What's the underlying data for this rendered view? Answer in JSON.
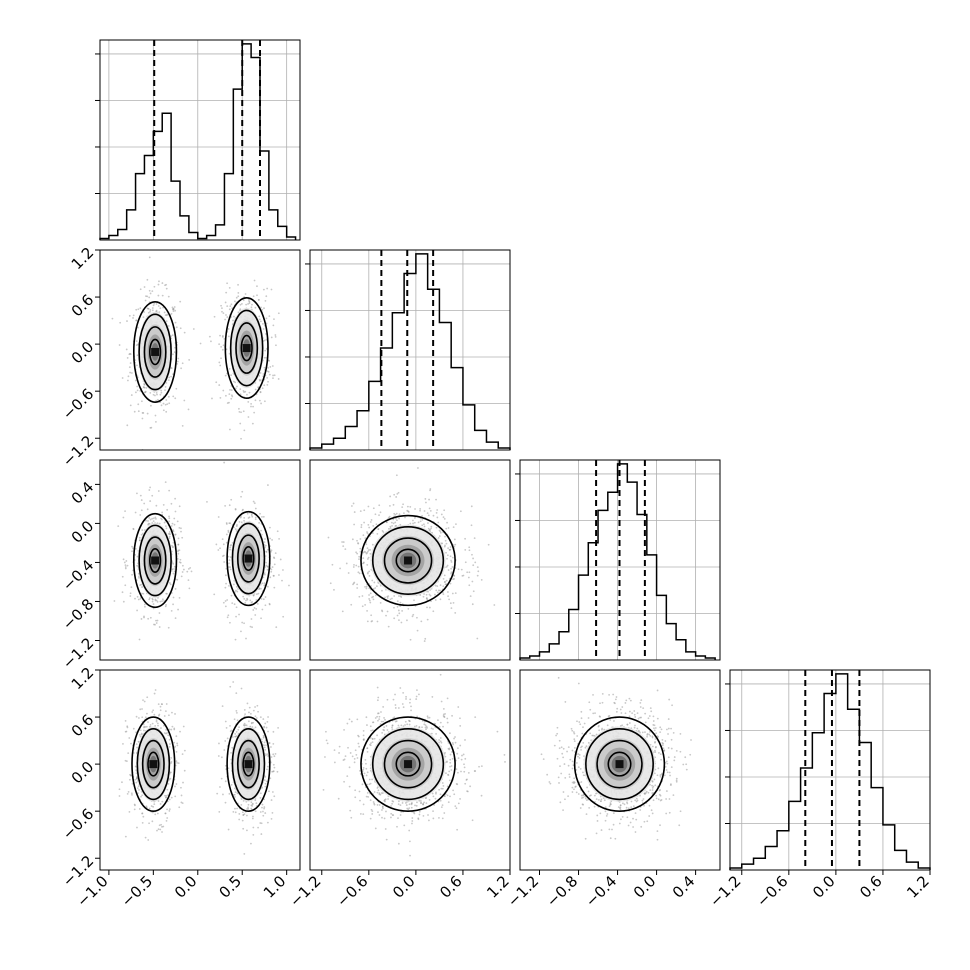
{
  "chart_data": {
    "type": "corner",
    "title": "",
    "parameters": [
      {
        "range": [
          -1.1,
          1.15
        ],
        "ticks": [
          -1.0,
          -0.5,
          0.0,
          0.5,
          1.0
        ],
        "tick_labels": [
          "−1.0",
          "−0.5",
          "0.0",
          "0.5",
          "1.0"
        ],
        "hist_x": [
          -1.1,
          -1.0,
          -0.9,
          -0.8,
          -0.7,
          -0.6,
          -0.5,
          -0.4,
          -0.3,
          -0.2,
          -0.1,
          0.0,
          0.1,
          0.2,
          0.3,
          0.4,
          0.5,
          0.6,
          0.7,
          0.8,
          0.9,
          1.0,
          1.1
        ],
        "hist_counts": [
          0.01,
          0.03,
          0.07,
          0.2,
          0.44,
          0.56,
          0.72,
          0.84,
          0.39,
          0.16,
          0.05,
          0.01,
          0.03,
          0.1,
          0.44,
          1.0,
          1.3,
          1.21,
          0.59,
          0.2,
          0.09,
          0.02
        ],
        "quantiles": [
          -0.49,
          0.5,
          0.7
        ]
      },
      {
        "range": [
          -1.35,
          1.2
        ],
        "ticks": [
          -1.2,
          -0.6,
          0.0,
          0.6,
          1.2
        ],
        "tick_labels": [
          "−1.2",
          "−0.6",
          "0.0",
          "0.6",
          "1.2"
        ],
        "hist_x": [
          -1.35,
          -1.2,
          -1.05,
          -0.9,
          -0.75,
          -0.6,
          -0.45,
          -0.3,
          -0.15,
          0.0,
          0.15,
          0.3,
          0.45,
          0.6,
          0.75,
          0.9,
          1.05,
          1.2
        ],
        "hist_counts": [
          0.01,
          0.03,
          0.06,
          0.12,
          0.2,
          0.35,
          0.52,
          0.7,
          0.9,
          1.0,
          0.82,
          0.65,
          0.42,
          0.23,
          0.1,
          0.04,
          0.01
        ],
        "quantiles": [
          -0.44,
          -0.11,
          0.22
        ]
      },
      {
        "range": [
          -1.4,
          0.65
        ],
        "ticks": [
          -1.2,
          -0.8,
          -0.4,
          0.0,
          0.4
        ],
        "tick_labels": [
          "−1.2",
          "−0.8",
          "−0.4",
          "0.0",
          "0.4"
        ],
        "hist_x": [
          -1.4,
          -1.3,
          -1.2,
          -1.1,
          -1.0,
          -0.9,
          -0.8,
          -0.7,
          -0.6,
          -0.5,
          -0.4,
          -0.3,
          -0.2,
          -0.1,
          0.0,
          0.1,
          0.2,
          0.3,
          0.4,
          0.5,
          0.6
        ],
        "hist_counts": [
          0.01,
          0.02,
          0.04,
          0.08,
          0.14,
          0.25,
          0.42,
          0.58,
          0.74,
          0.83,
          0.97,
          0.88,
          0.72,
          0.52,
          0.32,
          0.18,
          0.1,
          0.04,
          0.02,
          0.01
        ],
        "quantiles": [
          -0.62,
          -0.38,
          -0.12
        ]
      },
      {
        "range": [
          -1.35,
          1.2
        ],
        "ticks": [
          -1.2,
          -0.6,
          0.0,
          0.6,
          1.2
        ],
        "tick_labels": [
          "−1.2",
          "−0.6",
          "0.0",
          "0.6",
          "1.2"
        ],
        "hist_x": [
          -1.35,
          -1.2,
          -1.05,
          -0.9,
          -0.75,
          -0.6,
          -0.45,
          -0.3,
          -0.15,
          0.0,
          0.15,
          0.3,
          0.45,
          0.6,
          0.75,
          0.9,
          1.05,
          1.2
        ],
        "hist_counts": [
          0.01,
          0.03,
          0.06,
          0.12,
          0.2,
          0.35,
          0.52,
          0.7,
          0.9,
          1.0,
          0.82,
          0.65,
          0.42,
          0.23,
          0.1,
          0.04,
          0.01
        ],
        "quantiles": [
          -0.39,
          -0.05,
          0.3
        ]
      }
    ],
    "scatter_panels": [
      {
        "x_param": 0,
        "y_param": 1,
        "modes": [
          {
            "x": -0.48,
            "y": -0.1,
            "sx": 0.12,
            "sy": 0.32
          },
          {
            "x": 0.55,
            "y": -0.05,
            "sx": 0.12,
            "sy": 0.32
          }
        ]
      },
      {
        "x_param": 0,
        "y_param": 2,
        "modes": [
          {
            "x": -0.48,
            "y": -0.38,
            "sx": 0.12,
            "sy": 0.24
          },
          {
            "x": 0.57,
            "y": -0.36,
            "sx": 0.12,
            "sy": 0.24
          }
        ]
      },
      {
        "x_param": 1,
        "y_param": 2,
        "modes": [
          {
            "x": -0.1,
            "y": -0.38,
            "sx": 0.3,
            "sy": 0.23
          }
        ]
      },
      {
        "x_param": 0,
        "y_param": 3,
        "modes": [
          {
            "x": -0.5,
            "y": 0.0,
            "sx": 0.12,
            "sy": 0.3
          },
          {
            "x": 0.57,
            "y": 0.0,
            "sx": 0.12,
            "sy": 0.3
          }
        ]
      },
      {
        "x_param": 1,
        "y_param": 3,
        "modes": [
          {
            "x": -0.1,
            "y": 0.0,
            "sx": 0.3,
            "sy": 0.3
          }
        ]
      },
      {
        "x_param": 2,
        "y_param": 3,
        "modes": [
          {
            "x": -0.38,
            "y": 0.0,
            "sx": 0.23,
            "sy": 0.3
          }
        ]
      }
    ],
    "grid": true,
    "colors": {
      "line": "#000000",
      "grid": "#b0b0b0",
      "points": "#9a9a9a"
    }
  }
}
